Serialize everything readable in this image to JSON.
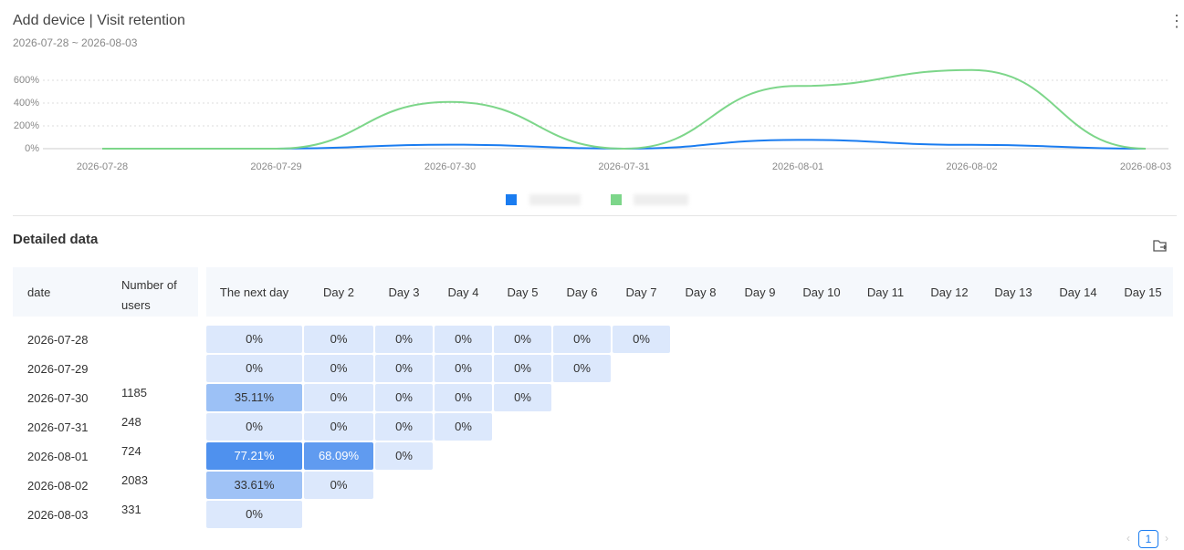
{
  "header": {
    "title": "Add device | Visit retention",
    "date_range": "2026-07-28 ~ 2026-08-03"
  },
  "chart_data": {
    "type": "line",
    "x": [
      "2026-07-28",
      "2026-07-29",
      "2026-07-30",
      "2026-07-31",
      "2026-08-01",
      "2026-08-02",
      "2026-08-03"
    ],
    "series": [
      {
        "color": "#1a7cf0",
        "values": [
          0,
          0,
          35.11,
          0,
          77.21,
          33.61,
          0
        ]
      },
      {
        "color": "#7dd68a",
        "values": [
          0,
          0,
          410,
          0,
          550,
          690,
          0
        ]
      }
    ],
    "ylim": [
      0,
      700
    ],
    "yticks": [
      {
        "value": 0,
        "label": "0%"
      },
      {
        "value": 200,
        "label": "200%"
      },
      {
        "value": 400,
        "label": "400%"
      },
      {
        "value": 600,
        "label": "600%"
      }
    ],
    "grid": true
  },
  "table": {
    "title": "Detailed data",
    "columns": [
      "date",
      "Number of users",
      "The next day",
      "Day 2",
      "Day 3",
      "Day 4",
      "Day 5",
      "Day 6",
      "Day 7",
      "Day 8",
      "Day 9",
      "Day 10",
      "Day 11",
      "Day 12",
      "Day 13",
      "Day 14",
      "Day 15"
    ],
    "rows": [
      {
        "date": "2026-07-28",
        "users": null,
        "cells": [
          "0%",
          "0%",
          "0%",
          "0%",
          "0%",
          "0%",
          "0%"
        ]
      },
      {
        "date": "2026-07-29",
        "users": null,
        "cells": [
          "0%",
          "0%",
          "0%",
          "0%",
          "0%",
          "0%"
        ]
      },
      {
        "date": "2026-07-30",
        "users": "1185",
        "cells": [
          "35.11%",
          "0%",
          "0%",
          "0%",
          "0%"
        ]
      },
      {
        "date": "2026-07-31",
        "users": "248",
        "cells": [
          "0%",
          "0%",
          "0%",
          "0%"
        ]
      },
      {
        "date": "2026-08-01",
        "users": "724",
        "cells": [
          "77.21%",
          "68.09%",
          "0%"
        ]
      },
      {
        "date": "2026-08-02",
        "users": "2083",
        "cells": [
          "33.61%",
          "0%"
        ]
      },
      {
        "date": "2026-08-03",
        "users": "331",
        "cells": [
          "0%"
        ]
      }
    ]
  },
  "pagination": {
    "current": "1"
  }
}
